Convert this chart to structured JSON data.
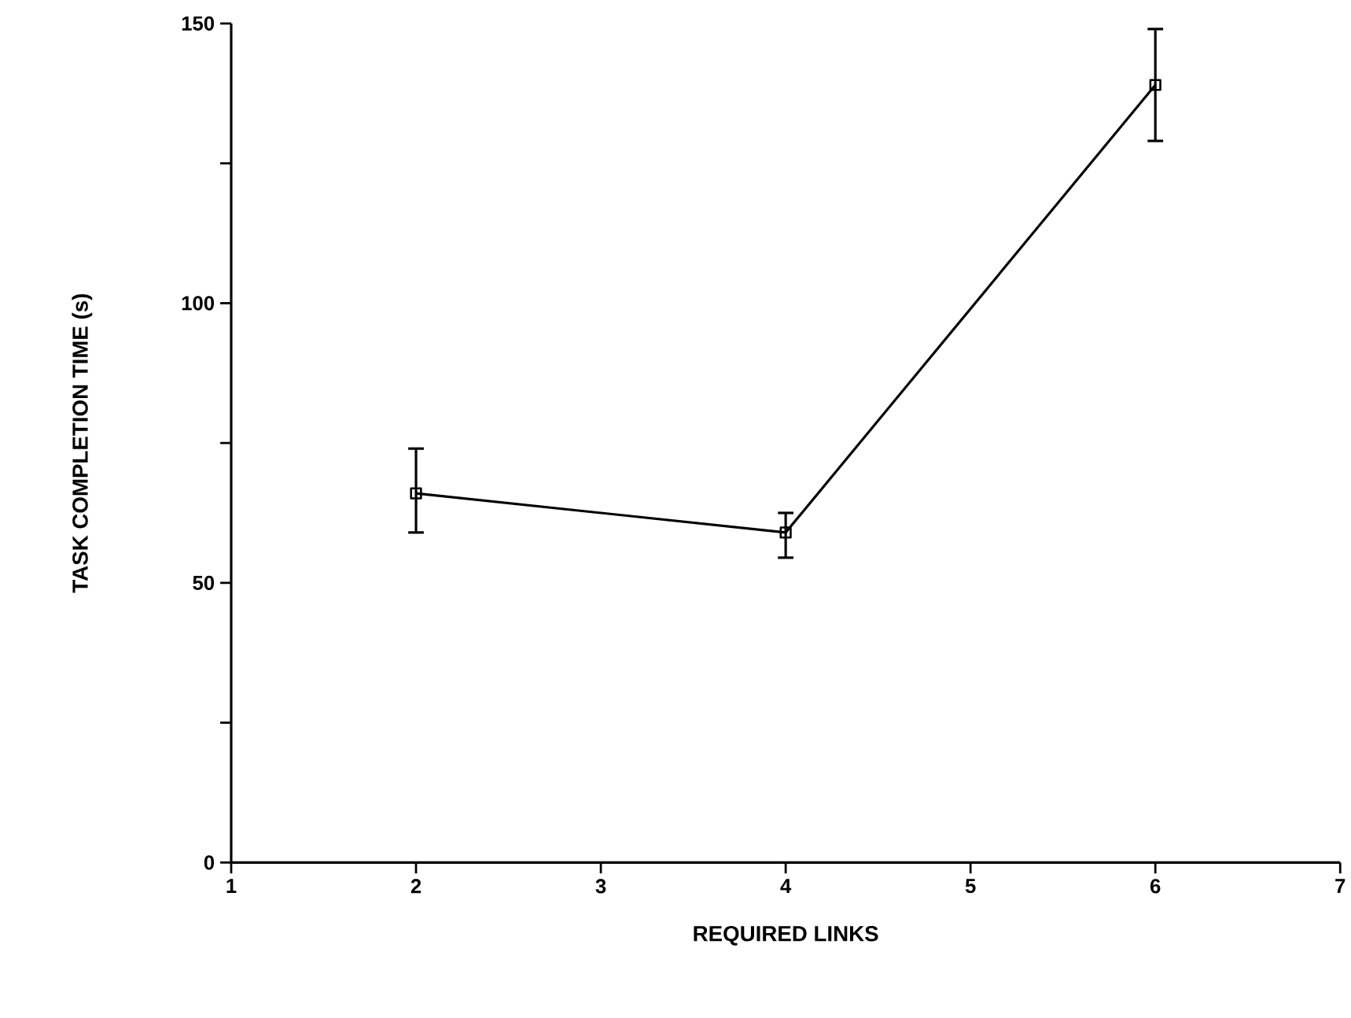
{
  "chart_data": {
    "type": "line",
    "xlabel": "REQUIRED LINKS",
    "ylabel": "TASK COMPLETION TIME (s)",
    "x": [
      2,
      4,
      6
    ],
    "series": [
      {
        "color": "#000000",
        "values": [
          66,
          59,
          139
        ],
        "errors": [
          [
            59,
            74
          ],
          [
            54.5,
            62.5
          ],
          [
            129,
            149
          ]
        ]
      }
    ],
    "xlim": [
      1,
      7
    ],
    "xticks": [
      1,
      2,
      3,
      4,
      5,
      6,
      7
    ],
    "ylim": [
      0,
      150
    ],
    "yticks": [
      0,
      {
        "value": 25,
        "label": null
      },
      50,
      {
        "value": 75,
        "label": null
      },
      100,
      {
        "value": 125,
        "label": null
      },
      150
    ],
    "marker": "square",
    "line_style": "solid"
  }
}
